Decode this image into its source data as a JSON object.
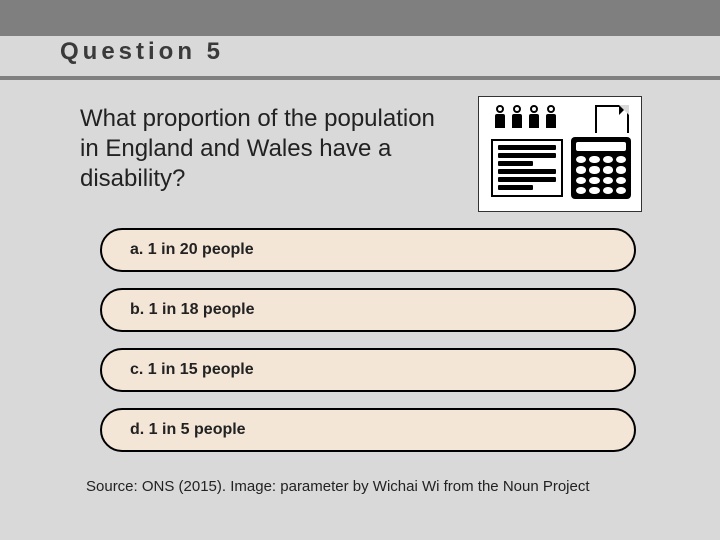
{
  "header": {
    "bar_color": "#7f7f7f",
    "title": "Question 5",
    "title_color": "#3a3a3a",
    "title_fontsize": 24,
    "title_letterspacing": 4,
    "underline_color": "#808080"
  },
  "background_color": "#d9d9d9",
  "question": {
    "text": "What proportion of the population in England and Wales have a disability?",
    "fontsize": 24
  },
  "graphic": {
    "icon_name": "demographics-parameter-icon",
    "box_bg": "#ffffff",
    "box_border": "#333333",
    "ink": "#000000"
  },
  "options": {
    "bg": "#f4e6d7",
    "border": "#000000",
    "border_radius": 22,
    "fontsize": 16,
    "items": [
      {
        "letter": "a",
        "label": "a. 1 in 20 people"
      },
      {
        "letter": "b",
        "label": "b. 1 in 18 people"
      },
      {
        "letter": "c",
        "label": "c. 1 in 15 people"
      },
      {
        "letter": "d",
        "label": "d. 1 in 5 people"
      }
    ]
  },
  "source": {
    "text": "Source: ONS (2015). Image: parameter by Wichai Wi from the Noun Project",
    "fontsize": 15
  }
}
